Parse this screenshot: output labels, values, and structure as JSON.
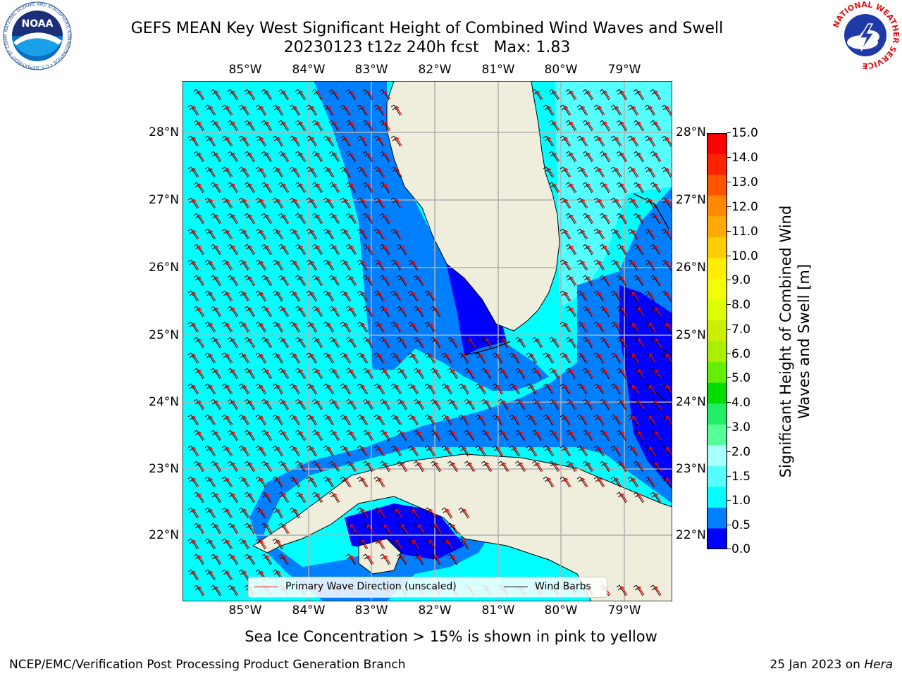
{
  "title": {
    "line1": "GEFS MEAN Key West Significant Height of Combined Wind Waves and Swell",
    "line2": "20230123 t12z 240h fcst   Max: 1.83"
  },
  "longitudes": [
    "85°W",
    "84°W",
    "83°W",
    "82°W",
    "81°W",
    "80°W",
    "79°W"
  ],
  "latitudes": [
    "28°N",
    "27°N",
    "26°N",
    "25°N",
    "24°N",
    "23°N",
    "22°N"
  ],
  "colorbar": {
    "label": "Significant Height of Combined Wind Waves and Swell [m]",
    "ticks": [
      "15.0",
      "14.0",
      "13.0",
      "12.0",
      "11.0",
      "10.0",
      "9.0",
      "8.0",
      "7.0",
      "6.0",
      "5.0",
      "4.0",
      "3.0",
      "2.0",
      "1.5",
      "1.0",
      "0.5",
      "0.0"
    ],
    "colors": [
      "#ff0000",
      "#ff2200",
      "#ff5500",
      "#ff8800",
      "#ffaa00",
      "#ffcc00",
      "#ffee00",
      "#f2ff00",
      "#ddff00",
      "#ccee00",
      "#aaee00",
      "#66ee00",
      "#00dd00",
      "#22ee66",
      "#55ff99",
      "#aaffff",
      "#55ffff",
      "#00ffff",
      "#0080ff",
      "#0000ff"
    ]
  },
  "map_colors": {
    "land": "#efeddc",
    "band_0_0.5": "#0000ff",
    "band_0.5_1.0": "#0080ff",
    "band_1.0_1.5": "#00ffff",
    "band_1.5_2.0": "#55ffff",
    "grid": "#b0b0b0",
    "wave_arrow": "#ff0000",
    "wind_barb": "#000000"
  },
  "legend": {
    "wave": "Primary Wave Direction (unscaled)",
    "wind": "Wind Barbs"
  },
  "footer": {
    "note": "Sea Ice Concentration > 15% is shown in pink to yellow",
    "credit_left": "NCEP/EMC/Verification Post Processing Product Generation Branch",
    "credit_date": "25 Jan 2023 on ",
    "credit_host": "Hera"
  },
  "logos": {
    "noaa_text": "NOAA",
    "noaa_ring": "NATIONAL OCEANIC AND ATMOSPHERIC ADMINISTRATION • U.S. DEPARTMENT OF COMMERCE •",
    "nws_ring": "NATIONAL WEATHER SERVICE"
  }
}
